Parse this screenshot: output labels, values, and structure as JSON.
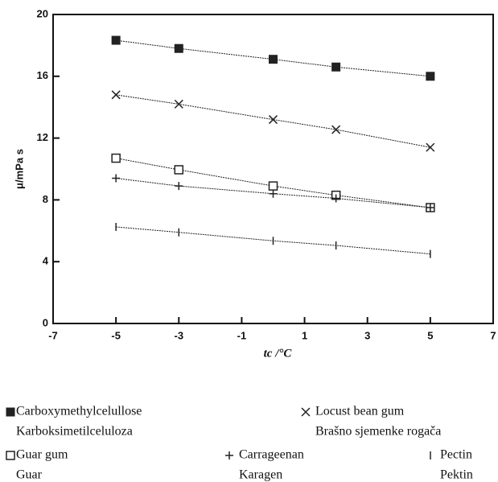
{
  "chart_data": {
    "type": "line",
    "xlabel": "tc /°C",
    "ylabel": "μ/mPa s",
    "xlim": [
      -7,
      7
    ],
    "xticks": [
      -7,
      -5,
      -3,
      -1,
      1,
      3,
      5,
      7
    ],
    "ylim": [
      0,
      20
    ],
    "yticks": [
      0,
      4,
      8,
      12,
      16,
      20
    ],
    "x": [
      -5,
      -3,
      0,
      2,
      5
    ],
    "series": [
      {
        "name": "Carboxymethylcelullose",
        "subname": "Karboksimetilceluloza",
        "marker": "filled-square",
        "color": "#222",
        "values": [
          18.33,
          17.8,
          17.1,
          16.6,
          16.0
        ]
      },
      {
        "name": "Locust bean gum",
        "subname": "Brašno sjemenke rogača",
        "marker": "cross",
        "color": "#222",
        "values": [
          14.8,
          14.2,
          13.2,
          12.55,
          11.4
        ]
      },
      {
        "name": "Guar gum",
        "subname": "Guar",
        "marker": "open-square",
        "color": "#222",
        "values": [
          10.7,
          9.95,
          8.9,
          8.3,
          7.5
        ]
      },
      {
        "name": "Carrageenan",
        "subname": "Karagen",
        "marker": "plus",
        "color": "#222",
        "values": [
          9.4,
          8.9,
          8.4,
          8.1,
          7.5
        ]
      },
      {
        "name": "Pectin",
        "subname": "Pektin",
        "marker": "bar",
        "color": "#222",
        "values": [
          6.25,
          5.9,
          5.35,
          5.05,
          4.5
        ]
      }
    ]
  }
}
